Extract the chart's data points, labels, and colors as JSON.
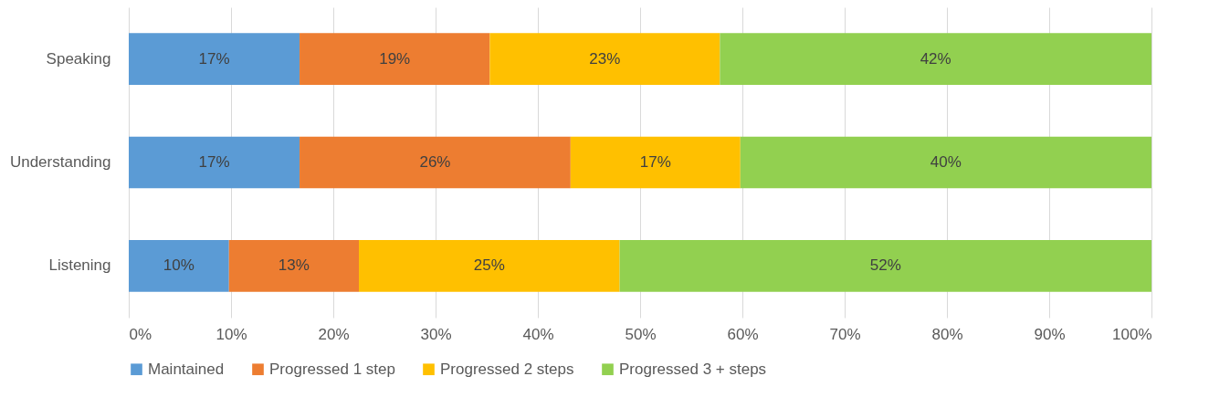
{
  "chart_data": {
    "type": "bar",
    "orientation": "horizontal",
    "stacked": true,
    "categories": [
      "Speaking",
      "Understanding",
      "Listening"
    ],
    "series": [
      {
        "name": "Maintained",
        "color": "#5b9bd5",
        "values": [
          16.7,
          16.7,
          9.8
        ],
        "value_labels": [
          "17%",
          "17%",
          "10%"
        ]
      },
      {
        "name": "Progressed 1 step",
        "color": "#ed7d31",
        "values": [
          18.6,
          26.5,
          12.7
        ],
        "value_labels": [
          "19%",
          "26%",
          "13%"
        ]
      },
      {
        "name": "Progressed 2 steps",
        "color": "#ffc000",
        "values": [
          22.5,
          16.6,
          25.5
        ],
        "value_labels": [
          "23%",
          "17%",
          "25%"
        ]
      },
      {
        "name": "Progressed 3 + steps",
        "color": "#92d050",
        "values": [
          42.2,
          40.2,
          52.0
        ],
        "value_labels": [
          "42%",
          "40%",
          "52%"
        ]
      }
    ],
    "xlim": [
      0,
      100
    ],
    "xticks": [
      {
        "value": 0,
        "label": "0%"
      },
      {
        "value": 10,
        "label": "10%"
      },
      {
        "value": 20,
        "label": "20%"
      },
      {
        "value": 30,
        "label": "30%"
      },
      {
        "value": 40,
        "label": "40%"
      },
      {
        "value": 50,
        "label": "50%"
      },
      {
        "value": 60,
        "label": "60%"
      },
      {
        "value": 70,
        "label": "70%"
      },
      {
        "value": 80,
        "label": "80%"
      },
      {
        "value": 90,
        "label": "90%"
      },
      {
        "value": 100,
        "label": "100%"
      }
    ],
    "grid": "x",
    "legend": "bottom"
  }
}
